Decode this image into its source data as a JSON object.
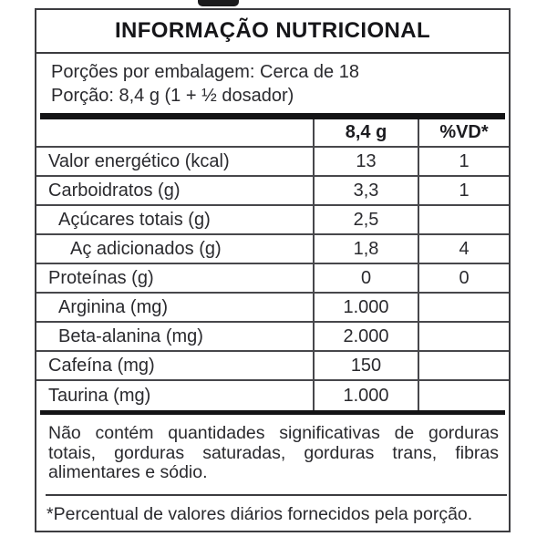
{
  "label": {
    "title": "INFORMAÇÃO NUTRICIONAL",
    "servings_per_package": "Porções por embalagem: Cerca de 18",
    "serving_size": "Porção: 8,4 g (1 + ½ dosador)",
    "table": {
      "columns": [
        "",
        "8,4 g",
        "%VD*"
      ],
      "rows": [
        {
          "name": "Valor energético (kcal)",
          "amount": "13",
          "vd": "1",
          "indent": 0
        },
        {
          "name": "Carboidratos (g)",
          "amount": "3,3",
          "vd": "1",
          "indent": 0
        },
        {
          "name": "Açúcares totais (g)",
          "amount": "2,5",
          "vd": "",
          "indent": 1
        },
        {
          "name": "Aç adicionados (g)",
          "amount": "1,8",
          "vd": "4",
          "indent": 2
        },
        {
          "name": "Proteínas (g)",
          "amount": "0",
          "vd": "0",
          "indent": 0
        },
        {
          "name": "Arginina (mg)",
          "amount": "1.000",
          "vd": "",
          "indent": 1
        },
        {
          "name": "Beta-alanina (mg)",
          "amount": "2.000",
          "vd": "",
          "indent": 1
        },
        {
          "name": "Cafeína (mg)",
          "amount": "150",
          "vd": "",
          "indent": 0
        },
        {
          "name": "Taurina (mg)",
          "amount": "1.000",
          "vd": "",
          "indent": 0
        }
      ]
    },
    "footnote": "Não contém quantidades significativas de gorduras totais, gorduras saturadas, gorduras trans, fibras alimentares e sódio.",
    "daily_value_note": "*Percentual de valores diários fornecidos pela porção.",
    "colors": {
      "text": "#2a2a2e",
      "border": "#3c3c40",
      "thick_bar": "#141416",
      "background": "#ffffff"
    }
  }
}
